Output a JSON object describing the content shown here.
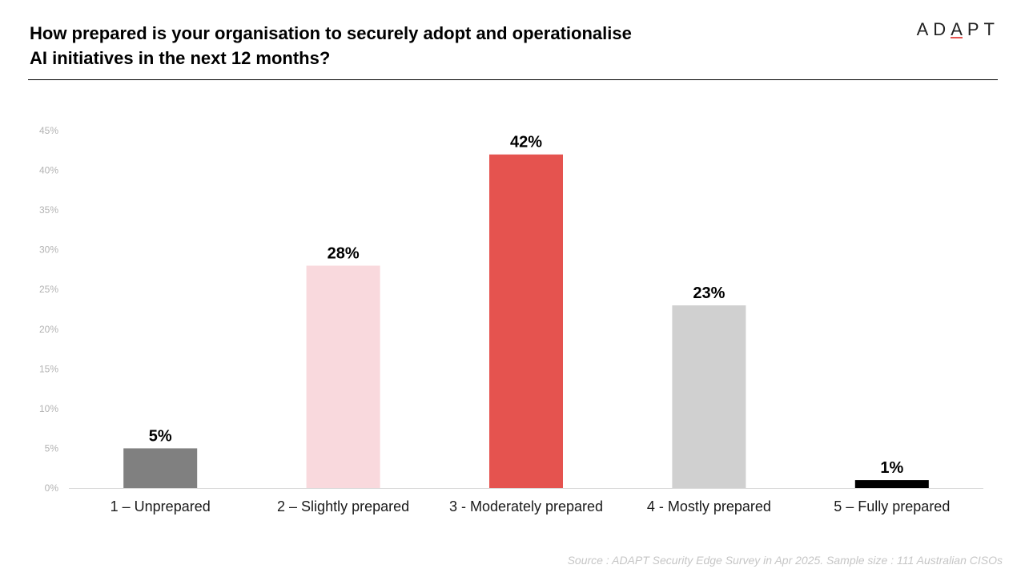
{
  "title_lines": [
    "How prepared is your organisation to securely adopt and operationalise",
    "AI initiatives in the next 12 months?"
  ],
  "logo": {
    "prefix": "AD",
    "accent_letter": "A",
    "suffix": "PT",
    "accent_color": "#e5534f"
  },
  "source_text": "Source : ADAPT Security Edge Survey in Apr 2025. Sample size : 111 Australian CISOs",
  "chart_data": {
    "type": "bar",
    "title": "How prepared is your organisation to securely adopt and operationalise AI initiatives in the next 12 months?",
    "categories": [
      "1 – Unprepared",
      "2 – Slightly prepared",
      "3 - Moderately prepared",
      "4 - Mostly prepared",
      "5 – Fully prepared"
    ],
    "values": [
      5,
      28,
      42,
      23,
      1
    ],
    "data_labels": [
      "5%",
      "28%",
      "42%",
      "23%",
      "1%"
    ],
    "colors": [
      "#808080",
      "#f9d9dd",
      "#e5534f",
      "#d0d0d0",
      "#000000"
    ],
    "ylim": [
      0,
      45
    ],
    "yticks": [
      0,
      5,
      10,
      15,
      20,
      25,
      30,
      35,
      40,
      45
    ],
    "ytick_labels": [
      "0%",
      "5%",
      "10%",
      "15%",
      "20%",
      "25%",
      "30%",
      "35%",
      "40%",
      "45%"
    ],
    "xlabel": "",
    "ylabel": "",
    "grid": false,
    "legend": "none"
  }
}
